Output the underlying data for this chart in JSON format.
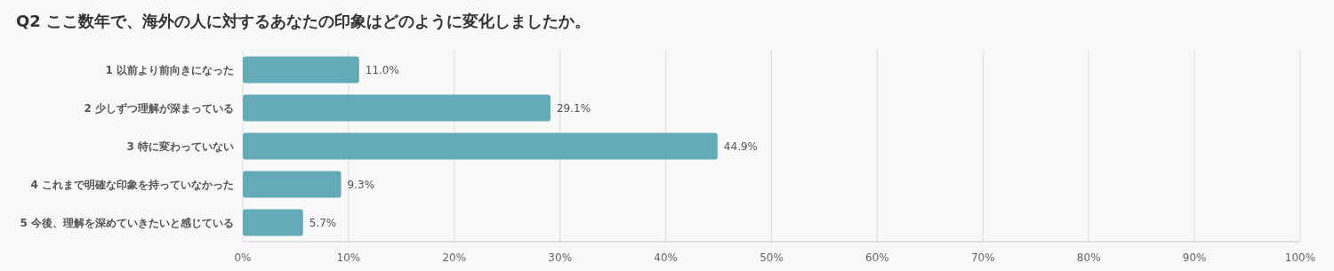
{
  "chart_data": {
    "type": "bar",
    "orientation": "horizontal",
    "title": "Q2 ここ数年で、海外の人に対するあなたの印象はどのように変化しましたか。",
    "categories": [
      "1 以前より前向きになった",
      "2 少しずつ理解が深まっている",
      "3 特に変わっていない",
      "4 これまで明確な印象を持っていなかった",
      "5 今後、理解を深めていきたいと感じている"
    ],
    "values": [
      11.0,
      29.1,
      44.9,
      9.3,
      5.7
    ],
    "value_labels": [
      "11.0%",
      "29.1%",
      "44.9%",
      "9.3%",
      "5.7%"
    ],
    "color": "#64abba",
    "xlim": [
      0,
      100
    ],
    "xticks": [
      {
        "value": 0,
        "label": "0%"
      },
      {
        "value": 10,
        "label": "10%"
      },
      {
        "value": 20,
        "label": "20%"
      },
      {
        "value": 30,
        "label": "30%"
      },
      {
        "value": 40,
        "label": "40%"
      },
      {
        "value": 50,
        "label": "50%"
      },
      {
        "value": 60,
        "label": "60%"
      },
      {
        "value": 70,
        "label": "70%"
      },
      {
        "value": 80,
        "label": "80%"
      },
      {
        "value": 90,
        "label": "90%"
      },
      {
        "value": 100,
        "label": "100%"
      }
    ],
    "grid": "x"
  }
}
